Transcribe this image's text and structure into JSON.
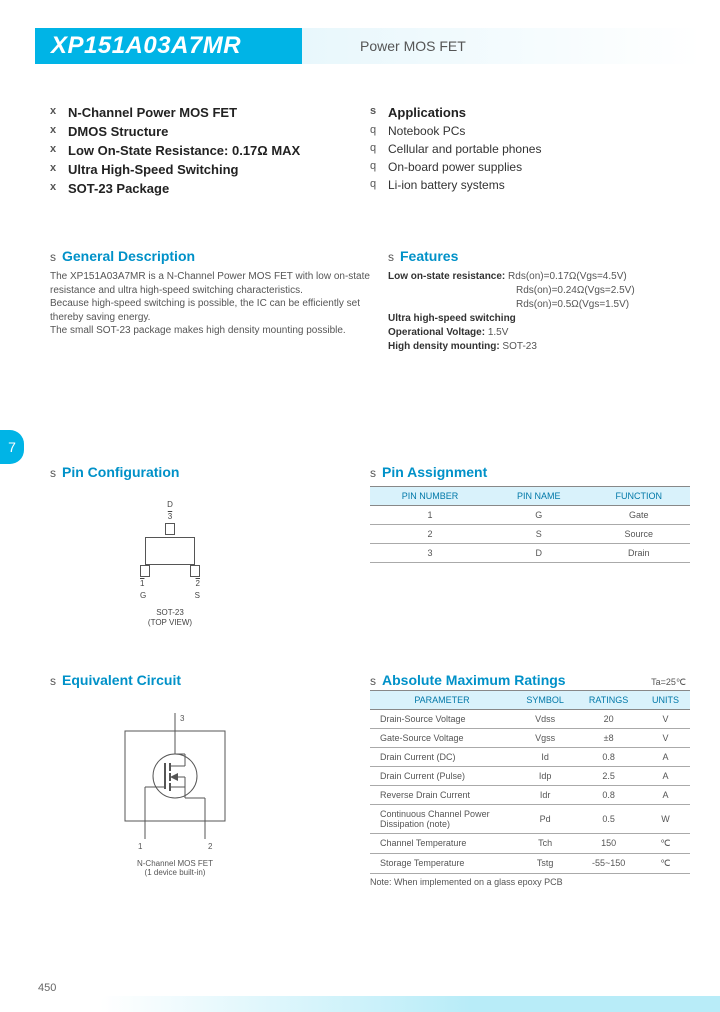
{
  "header": {
    "part_number": "XP151A03A7MR",
    "subtitle": "Power MOS FET"
  },
  "side_tab": "7",
  "page_number": "450",
  "key_features_left": [
    "N-Channel Power MOS FET",
    "DMOS Structure",
    "Low On-State Resistance: 0.17Ω MAX",
    "Ultra High-Speed Switching",
    "SOT-23 Package"
  ],
  "applications": {
    "title": "Applications",
    "items": [
      "Notebook PCs",
      "Cellular and portable phones",
      "On-board power supplies",
      "Li-ion battery systems"
    ]
  },
  "general_desc": {
    "title": "General Description",
    "text": "The XP151A03A7MR is a N-Channel Power MOS FET with low on-state resistance and ultra high-speed switching characteristics.\nBecause high-speed switching is possible, the IC can be efficiently set thereby saving energy.\nThe small SOT-23 package makes high density mounting possible."
  },
  "features": {
    "title": "Features",
    "lines": [
      {
        "label": "Low on-state resistance:",
        "val": "Rds(on)=0.17Ω(Vgs=4.5V)"
      },
      {
        "label": "",
        "val": "Rds(on)=0.24Ω(Vgs=2.5V)"
      },
      {
        "label": "",
        "val": "Rds(on)=0.5Ω(Vgs=1.5V)"
      },
      {
        "label": "Ultra high-speed switching",
        "val": ""
      },
      {
        "label": "Operational Voltage:",
        "val": "1.5V"
      },
      {
        "label": "High density mounting:",
        "val": "SOT-23"
      }
    ]
  },
  "pin_config": {
    "title": "Pin Configuration",
    "top_label_name": "D",
    "top_label_num": "3",
    "bot_left_num": "1",
    "bot_right_num": "2",
    "bot_left_name": "G",
    "bot_right_name": "S",
    "caption_l1": "SOT-23",
    "caption_l2": "(TOP VIEW)"
  },
  "pin_assign": {
    "title": "Pin Assignment",
    "headers": [
      "PIN NUMBER",
      "PIN NAME",
      "FUNCTION"
    ],
    "rows": [
      [
        "1",
        "G",
        "Gate"
      ],
      [
        "2",
        "S",
        "Source"
      ],
      [
        "3",
        "D",
        "Drain"
      ]
    ]
  },
  "eq_circuit": {
    "title": "Equivalent Circuit",
    "pin3": "3",
    "pin1": "1",
    "pin2": "2",
    "caption_l1": "N-Channel MOS FET",
    "caption_l2": "(1 device built-in)"
  },
  "abs_max": {
    "title": "Absolute Maximum Ratings",
    "ta": "Ta=25℃",
    "headers": [
      "PARAMETER",
      "SYMBOL",
      "RATINGS",
      "UNITS"
    ],
    "rows": [
      [
        "Drain-Source Voltage",
        "Vdss",
        "20",
        "V"
      ],
      [
        "Gate-Source Voltage",
        "Vgss",
        "±8",
        "V"
      ],
      [
        "Drain Current (DC)",
        "Id",
        "0.8",
        "A"
      ],
      [
        "Drain Current (Pulse)",
        "Idp",
        "2.5",
        "A"
      ],
      [
        "Reverse Drain Current",
        "Idr",
        "0.8",
        "A"
      ],
      [
        "Continuous Channel Power Dissipation (note)",
        "Pd",
        "0.5",
        "W"
      ],
      [
        "Channel Temperature",
        "Tch",
        "150",
        "℃"
      ],
      [
        "Storage Temperature",
        "Tstg",
        "-55~150",
        "℃"
      ]
    ],
    "note": "Note:  When implemented on a glass epoxy PCB"
  },
  "colors": {
    "primary": "#00b4e6",
    "heading": "#0091c8",
    "th_bg": "#d9f2fb",
    "th_text": "#0078a8"
  }
}
